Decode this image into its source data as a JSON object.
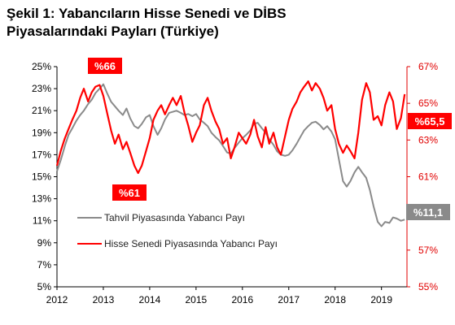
{
  "title_line1": "Şekil 1: Yabancıların Hisse Senedi ve DİBS",
  "title_line2": "Piyasalarındaki Payları (Türkiye)",
  "colors": {
    "bond": "#8a8a8a",
    "equity": "#ff0000",
    "right_axis": "#e00000",
    "callout_red": "#ff0000",
    "callout_gray": "#8a8a8a"
  },
  "chart_data": {
    "type": "line",
    "x_ticks": [
      "2012",
      "2013",
      "2014",
      "2015",
      "2016",
      "2017",
      "2018",
      "2019"
    ],
    "xlim": [
      2012,
      2019.55
    ],
    "y_left": {
      "ticks": [
        "25%",
        "23%",
        "21%",
        "19%",
        "17%",
        "15%",
        "13%",
        "11%",
        "9%",
        "7%",
        "5%"
      ],
      "ylim": [
        5,
        25
      ]
    },
    "y_right": {
      "ticks": [
        "67%",
        "65%",
        "63%",
        "61%",
        "59%",
        "57%",
        "55%"
      ],
      "ylim": [
        55,
        67
      ]
    },
    "grid": false,
    "legend_position": "bottom-left",
    "series": [
      {
        "name": "Tahvil Piyasasında Yabancı Payı",
        "axis": "left",
        "points": [
          [
            2012.0,
            15.5
          ],
          [
            2012.08,
            16.5
          ],
          [
            2012.17,
            17.8
          ],
          [
            2012.25,
            18.8
          ],
          [
            2012.33,
            19.4
          ],
          [
            2012.42,
            20.1
          ],
          [
            2012.5,
            20.6
          ],
          [
            2012.58,
            21.0
          ],
          [
            2012.67,
            21.6
          ],
          [
            2012.75,
            22.0
          ],
          [
            2012.83,
            22.6
          ],
          [
            2012.92,
            23.0
          ],
          [
            2013.0,
            23.4
          ],
          [
            2013.08,
            22.6
          ],
          [
            2013.17,
            21.8
          ],
          [
            2013.25,
            21.4
          ],
          [
            2013.33,
            21.0
          ],
          [
            2013.42,
            20.6
          ],
          [
            2013.5,
            21.2
          ],
          [
            2013.58,
            20.3
          ],
          [
            2013.67,
            19.6
          ],
          [
            2013.75,
            19.4
          ],
          [
            2013.83,
            19.8
          ],
          [
            2013.92,
            20.4
          ],
          [
            2014.0,
            20.6
          ],
          [
            2014.08,
            19.6
          ],
          [
            2014.17,
            18.8
          ],
          [
            2014.25,
            19.4
          ],
          [
            2014.33,
            20.2
          ],
          [
            2014.42,
            20.8
          ],
          [
            2014.5,
            20.9
          ],
          [
            2014.58,
            21.0
          ],
          [
            2014.67,
            20.8
          ],
          [
            2014.75,
            20.6
          ],
          [
            2014.83,
            20.7
          ],
          [
            2014.92,
            20.5
          ],
          [
            2015.0,
            20.7
          ],
          [
            2015.08,
            20.2
          ],
          [
            2015.17,
            19.9
          ],
          [
            2015.25,
            19.6
          ],
          [
            2015.33,
            19.0
          ],
          [
            2015.42,
            18.6
          ],
          [
            2015.5,
            18.3
          ],
          [
            2015.58,
            17.8
          ],
          [
            2015.67,
            17.2
          ],
          [
            2015.75,
            17.1
          ],
          [
            2015.83,
            17.6
          ],
          [
            2015.92,
            18.1
          ],
          [
            2016.0,
            18.5
          ],
          [
            2016.08,
            18.8
          ],
          [
            2016.17,
            19.2
          ],
          [
            2016.25,
            19.8
          ],
          [
            2016.33,
            19.9
          ],
          [
            2016.42,
            19.4
          ],
          [
            2016.5,
            19.0
          ],
          [
            2016.58,
            18.4
          ],
          [
            2016.67,
            17.9
          ],
          [
            2016.75,
            17.3
          ],
          [
            2016.83,
            17.0
          ],
          [
            2016.92,
            16.9
          ],
          [
            2017.0,
            17.0
          ],
          [
            2017.08,
            17.4
          ],
          [
            2017.17,
            18.0
          ],
          [
            2017.25,
            18.6
          ],
          [
            2017.33,
            19.2
          ],
          [
            2017.42,
            19.6
          ],
          [
            2017.5,
            19.9
          ],
          [
            2017.58,
            20.0
          ],
          [
            2017.67,
            19.7
          ],
          [
            2017.75,
            19.3
          ],
          [
            2017.83,
            19.6
          ],
          [
            2017.92,
            19.1
          ],
          [
            2018.0,
            18.4
          ],
          [
            2018.08,
            16.6
          ],
          [
            2018.17,
            14.6
          ],
          [
            2018.25,
            14.1
          ],
          [
            2018.33,
            14.6
          ],
          [
            2018.42,
            15.4
          ],
          [
            2018.5,
            15.9
          ],
          [
            2018.58,
            15.4
          ],
          [
            2018.67,
            14.9
          ],
          [
            2018.75,
            13.8
          ],
          [
            2018.83,
            12.3
          ],
          [
            2018.92,
            10.9
          ],
          [
            2019.0,
            10.5
          ],
          [
            2019.08,
            10.9
          ],
          [
            2019.17,
            10.8
          ],
          [
            2019.25,
            11.3
          ],
          [
            2019.33,
            11.2
          ],
          [
            2019.42,
            11.0
          ],
          [
            2019.5,
            11.1
          ]
        ]
      },
      {
        "name": "Hisse Senedi Piyasasında Yabancı Payı",
        "axis": "right",
        "points": [
          [
            2012.0,
            61.6
          ],
          [
            2012.08,
            62.4
          ],
          [
            2012.17,
            63.1
          ],
          [
            2012.25,
            63.6
          ],
          [
            2012.33,
            64.1
          ],
          [
            2012.42,
            64.6
          ],
          [
            2012.5,
            65.3
          ],
          [
            2012.58,
            65.8
          ],
          [
            2012.67,
            65.1
          ],
          [
            2012.75,
            65.6
          ],
          [
            2012.83,
            65.9
          ],
          [
            2012.92,
            66.0
          ],
          [
            2013.0,
            65.4
          ],
          [
            2013.08,
            64.5
          ],
          [
            2013.17,
            63.5
          ],
          [
            2013.25,
            62.8
          ],
          [
            2013.33,
            63.3
          ],
          [
            2013.42,
            62.5
          ],
          [
            2013.5,
            62.9
          ],
          [
            2013.58,
            62.3
          ],
          [
            2013.67,
            61.6
          ],
          [
            2013.75,
            61.2
          ],
          [
            2013.83,
            61.6
          ],
          [
            2013.92,
            62.4
          ],
          [
            2014.0,
            63.1
          ],
          [
            2014.08,
            64.1
          ],
          [
            2014.17,
            64.6
          ],
          [
            2014.25,
            64.9
          ],
          [
            2014.33,
            64.4
          ],
          [
            2014.42,
            64.9
          ],
          [
            2014.5,
            65.3
          ],
          [
            2014.58,
            64.9
          ],
          [
            2014.67,
            65.4
          ],
          [
            2014.75,
            64.5
          ],
          [
            2014.83,
            63.8
          ],
          [
            2014.92,
            62.9
          ],
          [
            2015.0,
            63.4
          ],
          [
            2015.08,
            63.8
          ],
          [
            2015.17,
            64.9
          ],
          [
            2015.25,
            65.3
          ],
          [
            2015.33,
            64.6
          ],
          [
            2015.42,
            64.0
          ],
          [
            2015.5,
            63.6
          ],
          [
            2015.58,
            62.8
          ],
          [
            2015.67,
            63.1
          ],
          [
            2015.75,
            62.0
          ],
          [
            2015.83,
            62.6
          ],
          [
            2015.92,
            63.4
          ],
          [
            2016.0,
            63.1
          ],
          [
            2016.08,
            62.8
          ],
          [
            2016.17,
            63.3
          ],
          [
            2016.25,
            64.1
          ],
          [
            2016.33,
            63.2
          ],
          [
            2016.42,
            62.6
          ],
          [
            2016.5,
            63.7
          ],
          [
            2016.58,
            62.8
          ],
          [
            2016.67,
            63.4
          ],
          [
            2016.75,
            62.6
          ],
          [
            2016.83,
            62.2
          ],
          [
            2016.92,
            63.2
          ],
          [
            2017.0,
            64.1
          ],
          [
            2017.08,
            64.7
          ],
          [
            2017.17,
            65.1
          ],
          [
            2017.25,
            65.6
          ],
          [
            2017.33,
            65.9
          ],
          [
            2017.42,
            66.2
          ],
          [
            2017.5,
            65.7
          ],
          [
            2017.58,
            66.1
          ],
          [
            2017.67,
            65.8
          ],
          [
            2017.75,
            65.3
          ],
          [
            2017.83,
            64.6
          ],
          [
            2017.92,
            64.9
          ],
          [
            2018.0,
            63.6
          ],
          [
            2018.08,
            62.8
          ],
          [
            2018.17,
            62.3
          ],
          [
            2018.25,
            62.7
          ],
          [
            2018.33,
            62.4
          ],
          [
            2018.42,
            62.0
          ],
          [
            2018.5,
            63.4
          ],
          [
            2018.58,
            65.2
          ],
          [
            2018.67,
            66.1
          ],
          [
            2018.75,
            65.6
          ],
          [
            2018.83,
            64.1
          ],
          [
            2018.92,
            64.3
          ],
          [
            2019.0,
            63.8
          ],
          [
            2019.08,
            64.9
          ],
          [
            2019.17,
            65.6
          ],
          [
            2019.25,
            65.1
          ],
          [
            2019.33,
            63.6
          ],
          [
            2019.42,
            64.2
          ],
          [
            2019.5,
            65.5
          ]
        ]
      }
    ],
    "annotations": [
      {
        "text": "%66",
        "x": 2012.92,
        "y": 66.0,
        "axis": "right",
        "color": "red"
      },
      {
        "text": "%61",
        "x": 2013.75,
        "y": 61.2,
        "axis": "right",
        "color": "red"
      },
      {
        "text": "%65,5",
        "x": 2019.5,
        "y": 65.5,
        "axis": "right",
        "color": "red"
      },
      {
        "text": "%11,1",
        "x": 2019.5,
        "y": 11.1,
        "axis": "left",
        "color": "gray"
      }
    ]
  }
}
